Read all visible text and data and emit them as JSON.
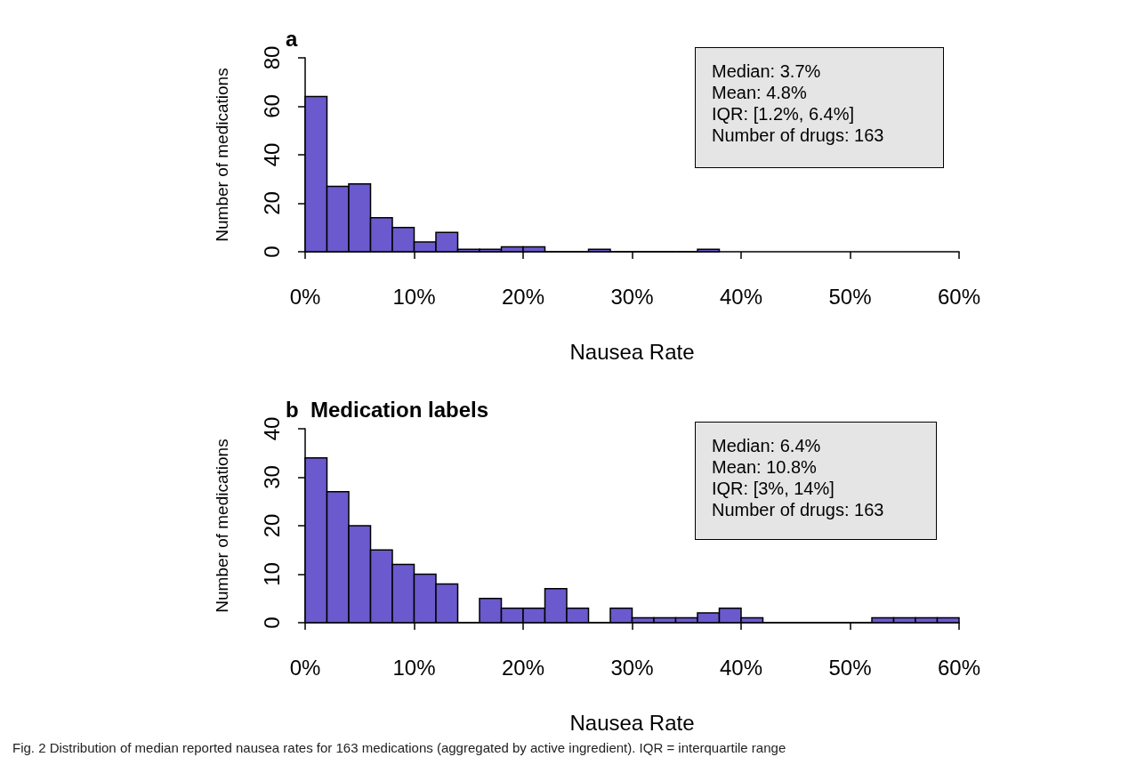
{
  "chart_data": [
    {
      "type": "histogram",
      "title": "a",
      "xlabel": "Nausea Rate",
      "ylabel": "Number of medications",
      "color": "#6a5acd",
      "bins": [
        0,
        2,
        4,
        6,
        8,
        10,
        12,
        14,
        16,
        18,
        20,
        22,
        24,
        26,
        28,
        30,
        32,
        34,
        36,
        38
      ],
      "values": [
        64,
        27,
        28,
        14,
        10,
        4,
        8,
        1,
        1,
        2,
        2,
        0,
        0,
        1,
        0,
        0,
        0,
        0,
        1
      ],
      "xlim": [
        0,
        60
      ],
      "xticks": [
        {
          "value": 0,
          "label": "0%"
        },
        {
          "value": 10,
          "label": "10%"
        },
        {
          "value": 20,
          "label": "20%"
        },
        {
          "value": 30,
          "label": "30%"
        },
        {
          "value": 40,
          "label": "40%"
        },
        {
          "value": 50,
          "label": "50%"
        },
        {
          "value": 60,
          "label": "60%"
        }
      ],
      "ylim": [
        0,
        80
      ],
      "yticks": [
        0,
        20,
        40,
        60,
        80
      ],
      "annotations": [
        "Median: 3.7%",
        "Mean: 4.8%",
        "IQR: [1.2%, 6.4%]",
        "Number of drugs: 163"
      ]
    },
    {
      "type": "histogram",
      "title": "b  Medication labels",
      "xlabel": "Nausea Rate",
      "ylabel": "Number of medications",
      "color": "#6a5acd",
      "bins": [
        0,
        2,
        4,
        6,
        8,
        10,
        12,
        14,
        16,
        18,
        20,
        22,
        24,
        26,
        28,
        30,
        32,
        34,
        36,
        38,
        40,
        42,
        44,
        46,
        48,
        50,
        52,
        54,
        56,
        58,
        60
      ],
      "values": [
        34,
        27,
        20,
        15,
        12,
        10,
        8,
        0,
        5,
        3,
        3,
        7,
        3,
        0,
        3,
        1,
        1,
        1,
        2,
        3,
        1,
        0,
        0,
        0,
        0,
        0,
        1,
        1,
        1,
        1
      ],
      "xlim": [
        0,
        60
      ],
      "xticks": [
        {
          "value": 0,
          "label": "0%"
        },
        {
          "value": 10,
          "label": "10%"
        },
        {
          "value": 20,
          "label": "20%"
        },
        {
          "value": 30,
          "label": "30%"
        },
        {
          "value": 40,
          "label": "40%"
        },
        {
          "value": 50,
          "label": "50%"
        },
        {
          "value": 60,
          "label": "60%"
        }
      ],
      "ylim": [
        0,
        40
      ],
      "yticks": [
        0,
        10,
        20,
        30,
        40
      ],
      "annotations": [
        "Median: 6.4%",
        "Mean: 10.8%",
        "IQR: [3%, 14%]",
        "Number of drugs: 163",
        "Fig. 2 Distribution of median reported nausea rates for 163 medications (aggregated by active ingredient). IQR = interquartile range"
      ]
    }
  ]
}
